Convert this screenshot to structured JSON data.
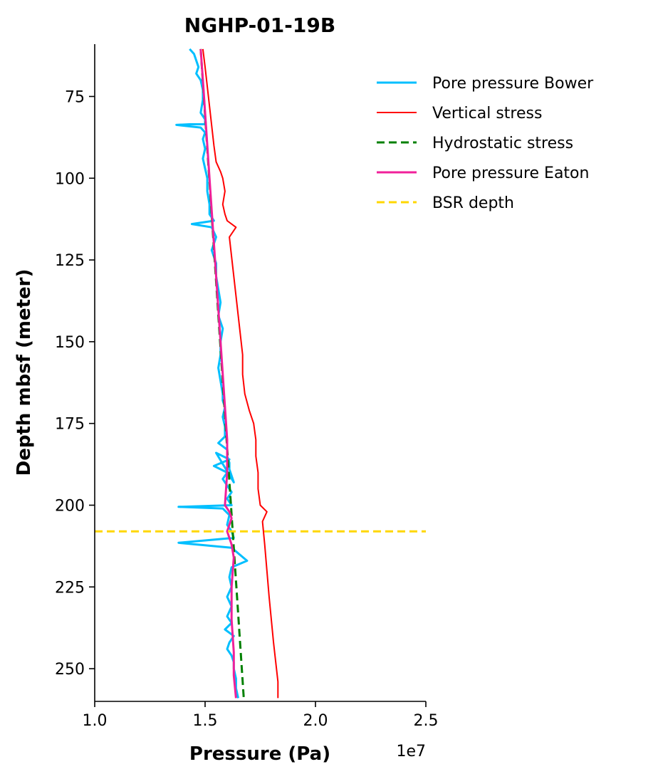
{
  "chart_data": {
    "type": "line",
    "title": "NGHP-01-19B",
    "xlabel": "Pressure (Pa)",
    "ylabel": "Depth mbsf (meter)",
    "x_offset_label": "1e7",
    "xlim": [
      1.0,
      2.5
    ],
    "ylim": [
      260,
      59
    ],
    "y_inverted": true,
    "x_ticks": [
      1.0,
      1.5,
      2.0,
      2.5
    ],
    "x_tick_labels": [
      "1.0",
      "1.5",
      "2.0",
      "2.5"
    ],
    "y_ticks": [
      75,
      100,
      125,
      150,
      175,
      200,
      225,
      250
    ],
    "y_tick_labels": [
      "75",
      "100",
      "125",
      "150",
      "175",
      "200",
      "225",
      "250"
    ],
    "grid": false,
    "legend_position": "top-right",
    "series": [
      {
        "name": "Pore pressure Bower",
        "color": "#00bfff",
        "style": "solid",
        "x": [
          1.43,
          1.45,
          1.46,
          1.47,
          1.46,
          1.48,
          1.49,
          1.49,
          1.48,
          1.5,
          1.5,
          1.43,
          1.37,
          1.48,
          1.5,
          1.49,
          1.5,
          1.49,
          1.5,
          1.51,
          1.51,
          1.52,
          1.52,
          1.53,
          1.54,
          1.44,
          1.53,
          1.55,
          1.53,
          1.55,
          1.55,
          1.56,
          1.57,
          1.56,
          1.58,
          1.57,
          1.57,
          1.56,
          1.57,
          1.58,
          1.58,
          1.59,
          1.58,
          1.59,
          1.59,
          1.56,
          1.6,
          1.6,
          1.61,
          1.61,
          1.62,
          1.63,
          1.55,
          1.61,
          1.54,
          1.6,
          1.58,
          1.62,
          1.6,
          1.61,
          1.62,
          1.38,
          1.58,
          1.61,
          1.6,
          1.62,
          1.63,
          1.38,
          1.62,
          1.69,
          1.62,
          1.61,
          1.62,
          1.6,
          1.62,
          1.6,
          1.62,
          1.59,
          1.63,
          1.61,
          1.6,
          1.62,
          1.63,
          1.63,
          1.64,
          1.64,
          1.65
        ],
        "y": [
          60.5,
          62,
          64,
          66,
          68,
          70,
          73,
          76,
          80,
          82,
          83.5,
          83.5,
          83.7,
          84.5,
          86,
          88,
          91,
          94,
          97,
          100,
          104,
          108,
          111,
          112,
          113,
          114,
          115,
          118,
          122,
          126,
          130,
          134,
          138,
          142,
          146,
          150,
          154,
          158,
          162,
          166,
          168,
          170,
          173,
          176,
          179,
          181,
          183,
          185,
          187,
          189,
          191,
          193,
          184,
          186,
          188,
          190,
          192,
          196,
          198,
          199,
          200,
          200.5,
          201,
          203,
          206,
          208,
          210,
          211.5,
          213,
          217,
          219,
          222,
          225,
          228,
          231,
          234,
          236,
          238,
          240,
          242,
          244,
          246,
          248,
          250,
          253,
          256,
          259
        ]
      },
      {
        "name": "Vertical stress",
        "color": "#ff0000",
        "style": "solid",
        "x": [
          1.49,
          1.5,
          1.51,
          1.52,
          1.53,
          1.54,
          1.55,
          1.57,
          1.58,
          1.59,
          1.58,
          1.59,
          1.6,
          1.64,
          1.61,
          1.62,
          1.63,
          1.64,
          1.65,
          1.66,
          1.67,
          1.67,
          1.68,
          1.7,
          1.72,
          1.73,
          1.73,
          1.74,
          1.74,
          1.75,
          1.78,
          1.76,
          1.77,
          1.78,
          1.79,
          1.8,
          1.81,
          1.82,
          1.83,
          1.83
        ],
        "y": [
          60.5,
          66,
          72,
          78,
          84,
          90,
          95,
          98,
          100,
          104,
          108,
          111,
          113,
          115,
          118,
          124,
          130,
          136,
          142,
          148,
          154,
          160,
          166,
          171,
          175,
          180,
          185,
          190,
          195,
          200,
          202,
          205,
          212,
          220,
          228,
          235,
          242,
          248,
          254,
          259
        ]
      },
      {
        "name": "Hydrostatic stress",
        "color": "#008000",
        "style": "dashed",
        "x": [
          1.48,
          1.675
        ],
        "y": [
          60.5,
          259
        ]
      },
      {
        "name": "Pore pressure Eaton",
        "color": "#f0209a",
        "style": "solid",
        "x": [
          1.48,
          1.49,
          1.5,
          1.51,
          1.52,
          1.53,
          1.54,
          1.55,
          1.56,
          1.57,
          1.58,
          1.59,
          1.6,
          1.6,
          1.59,
          1.61,
          1.62,
          1.6,
          1.62,
          1.63,
          1.62,
          1.62,
          1.63,
          1.63,
          1.64
        ],
        "y": [
          60.5,
          70,
          80,
          90,
          100,
          110,
          120,
          130,
          140,
          150,
          160,
          170,
          180,
          190,
          200,
          202,
          204,
          208,
          212,
          216,
          225,
          235,
          245,
          252,
          259
        ]
      },
      {
        "name": "BSR depth",
        "color": "#ffd700",
        "style": "dashed",
        "x": [
          1.0,
          2.5
        ],
        "y": [
          208,
          208
        ]
      }
    ]
  }
}
